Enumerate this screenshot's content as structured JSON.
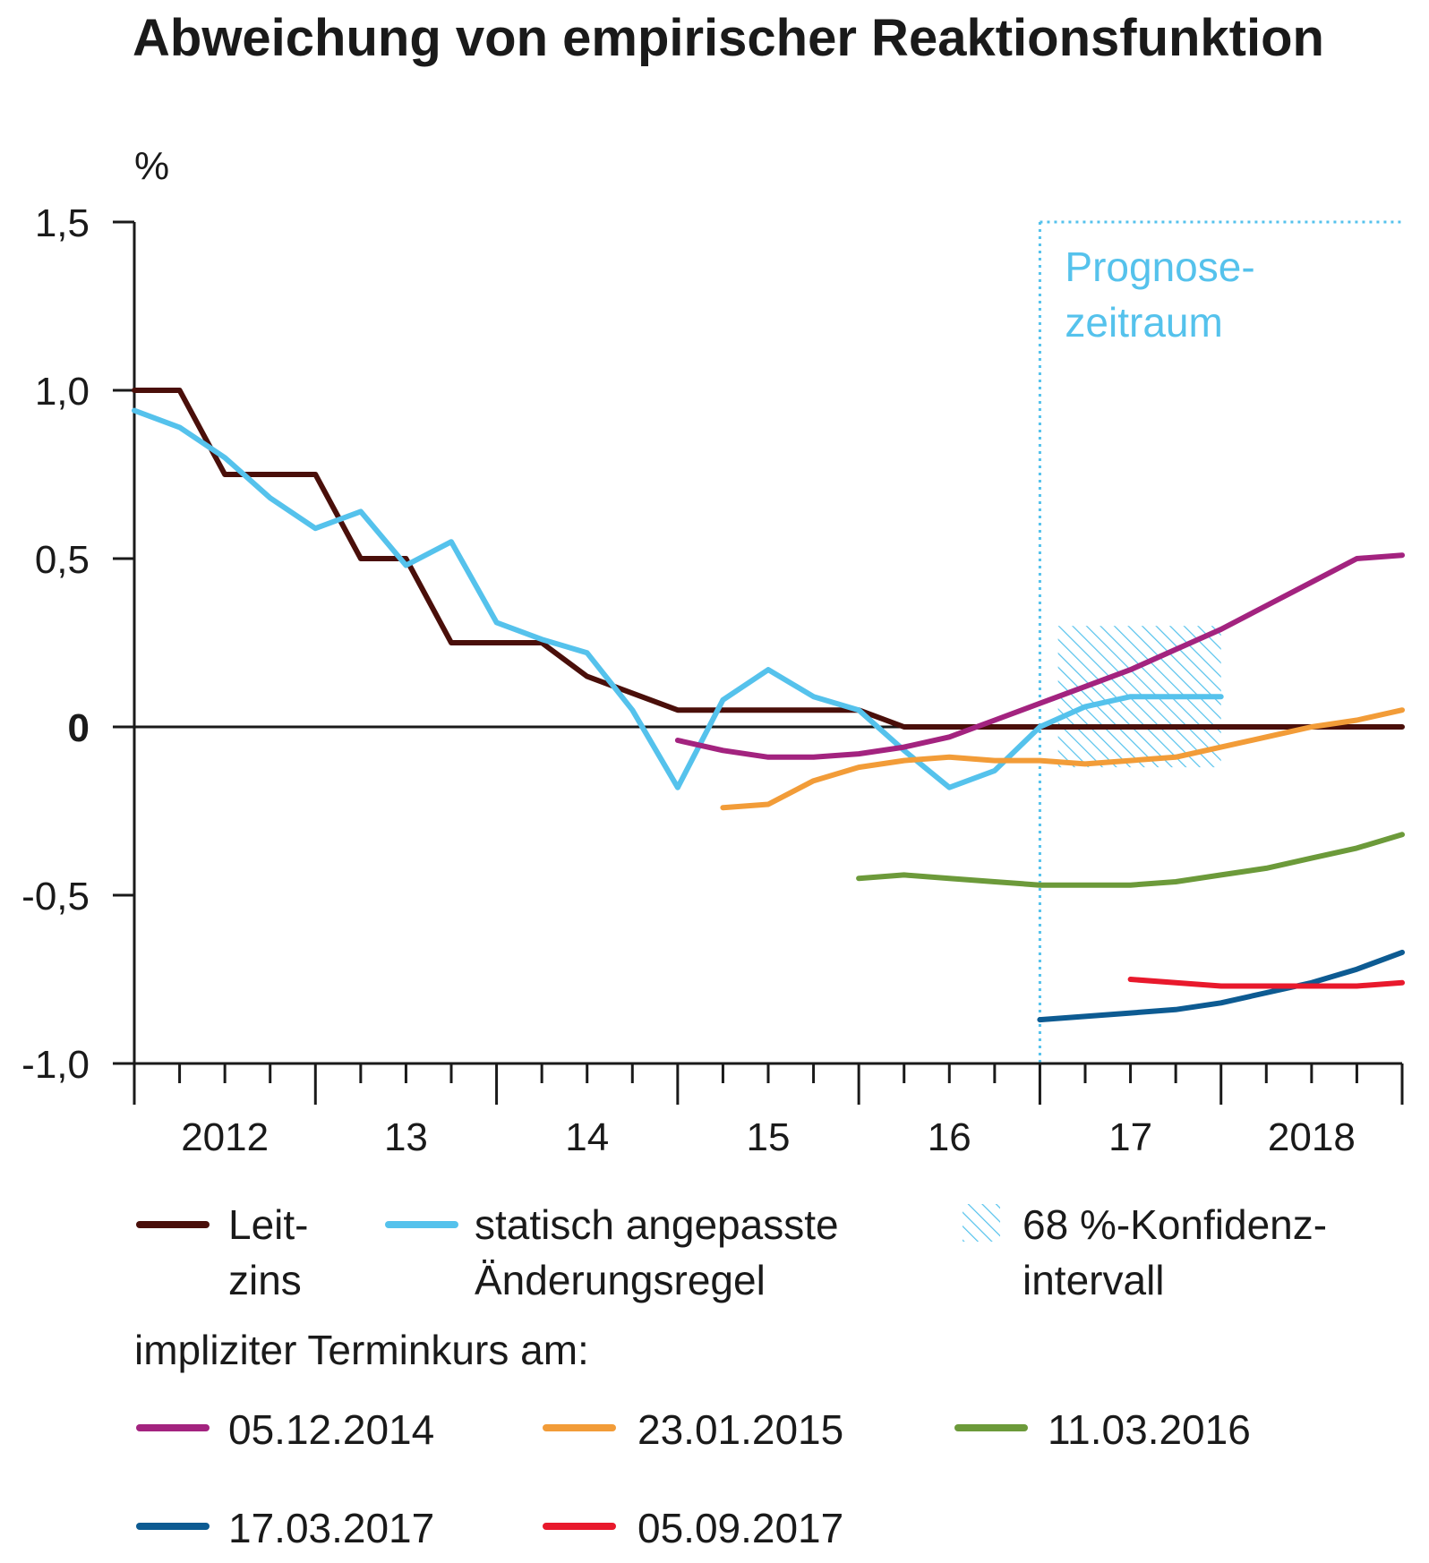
{
  "title": "Abweichung von empirischer Reaktionsfunktion",
  "colors": {
    "leitzins": "#4a0f0a",
    "rule": "#55c2ec",
    "t2014": "#a3237f",
    "t2015": "#f29c38",
    "t2016": "#6c9a3a",
    "t2017a": "#0d5b92",
    "t2017b": "#e8192c"
  },
  "chart_data": {
    "type": "line",
    "title": "Abweichung von empirischer Reaktionsfunktion",
    "y_unit_label": "%",
    "ylim": [
      -1.0,
      1.5
    ],
    "y_ticks": [
      -1.0,
      -0.5,
      0,
      0.5,
      1.0,
      1.5
    ],
    "y_tick_labels": [
      "-1,0",
      "-0,5",
      "0",
      "0,5",
      "1,0",
      "1,5"
    ],
    "xlim": [
      2012.0,
      2019.0
    ],
    "x_year_labels": [
      {
        "x": 2012.5,
        "label": "2012"
      },
      {
        "x": 2013.5,
        "label": "13"
      },
      {
        "x": 2014.5,
        "label": "14"
      },
      {
        "x": 2015.5,
        "label": "15"
      },
      {
        "x": 2016.5,
        "label": "16"
      },
      {
        "x": 2017.5,
        "label": "17"
      },
      {
        "x": 2018.5,
        "label": "2018"
      }
    ],
    "forecast_start": 2017.0,
    "forecast_label": [
      "Prognose-",
      "zeitraum"
    ],
    "confidence_interval": {
      "x": [
        2017.1,
        2018.0
      ],
      "lower": -0.12,
      "upper": 0.3
    },
    "legend": {
      "leitzins": [
        "Leit-",
        "zins"
      ],
      "rule": [
        "statisch angepasste",
        "Änderungsregel"
      ],
      "interval": [
        "68 %-Konfidenz-",
        "intervall"
      ],
      "forward_heading": "impliziter Terminkurs am:"
    },
    "series": [
      {
        "key": "leitzins",
        "name": "Leitzins",
        "color": "#4a0f0a",
        "x": [
          2012.0,
          2012.25,
          2012.5,
          2013.0,
          2013.25,
          2013.5,
          2013.75,
          2014.0,
          2014.25,
          2014.5,
          2015.0,
          2015.5,
          2016.0,
          2016.25,
          2016.5,
          2017.0,
          2017.5,
          2018.0,
          2018.5,
          2019.0
        ],
        "y": [
          1.0,
          1.0,
          0.75,
          0.75,
          0.5,
          0.5,
          0.25,
          0.25,
          0.25,
          0.15,
          0.05,
          0.05,
          0.05,
          0.0,
          0.0,
          0.0,
          0.0,
          0.0,
          0.0,
          0.0
        ]
      },
      {
        "key": "rule",
        "name": "statisch angepasste Änderungsregel",
        "color": "#55c2ec",
        "x": [
          2012.0,
          2012.25,
          2012.5,
          2012.75,
          2013.0,
          2013.25,
          2013.5,
          2013.75,
          2014.0,
          2014.25,
          2014.5,
          2014.75,
          2015.0,
          2015.25,
          2015.5,
          2015.75,
          2016.0,
          2016.25,
          2016.5,
          2016.75,
          2017.0,
          2017.25,
          2017.5,
          2017.75,
          2018.0
        ],
        "y": [
          0.94,
          0.89,
          0.8,
          0.68,
          0.59,
          0.64,
          0.48,
          0.55,
          0.31,
          0.26,
          0.22,
          0.05,
          -0.18,
          0.08,
          0.17,
          0.09,
          0.05,
          -0.07,
          -0.18,
          -0.13,
          0.0,
          0.06,
          0.09,
          0.09,
          0.09
        ]
      },
      {
        "key": "t2014",
        "name": "05.12.2014",
        "color": "#a3237f",
        "x": [
          2015.0,
          2015.25,
          2015.5,
          2015.75,
          2016.0,
          2016.25,
          2016.5,
          2016.75,
          2017.0,
          2017.25,
          2017.5,
          2017.75,
          2018.0,
          2018.25,
          2018.5,
          2018.75,
          2019.0
        ],
        "y": [
          -0.04,
          -0.07,
          -0.09,
          -0.09,
          -0.08,
          -0.06,
          -0.03,
          0.02,
          0.07,
          0.12,
          0.17,
          0.23,
          0.29,
          0.36,
          0.43,
          0.5,
          0.51
        ]
      },
      {
        "key": "t2015",
        "name": "23.01.2015",
        "color": "#f29c38",
        "x": [
          2015.25,
          2015.5,
          2015.75,
          2016.0,
          2016.25,
          2016.5,
          2016.75,
          2017.0,
          2017.25,
          2017.5,
          2017.75,
          2018.0,
          2018.25,
          2018.5,
          2018.75,
          2019.0
        ],
        "y": [
          -0.24,
          -0.23,
          -0.16,
          -0.12,
          -0.1,
          -0.09,
          -0.1,
          -0.1,
          -0.11,
          -0.1,
          -0.09,
          -0.06,
          -0.03,
          0.0,
          0.02,
          0.05
        ]
      },
      {
        "key": "t2016",
        "name": "11.03.2016",
        "color": "#6c9a3a",
        "x": [
          2016.0,
          2016.25,
          2016.5,
          2016.75,
          2017.0,
          2017.25,
          2017.5,
          2017.75,
          2018.0,
          2018.25,
          2018.5,
          2018.75,
          2019.0
        ],
        "y": [
          -0.45,
          -0.44,
          -0.45,
          -0.46,
          -0.47,
          -0.47,
          -0.47,
          -0.46,
          -0.44,
          -0.42,
          -0.39,
          -0.36,
          -0.32
        ]
      },
      {
        "key": "t2017a",
        "name": "17.03.2017",
        "color": "#0d5b92",
        "x": [
          2017.0,
          2017.25,
          2017.5,
          2017.75,
          2018.0,
          2018.25,
          2018.5,
          2018.75,
          2019.0
        ],
        "y": [
          -0.87,
          -0.86,
          -0.85,
          -0.84,
          -0.82,
          -0.79,
          -0.76,
          -0.72,
          -0.67
        ]
      },
      {
        "key": "t2017b",
        "name": "05.09.2017",
        "color": "#e8192c",
        "x": [
          2017.5,
          2017.75,
          2018.0,
          2018.25,
          2018.5,
          2018.75,
          2019.0
        ],
        "y": [
          -0.75,
          -0.76,
          -0.77,
          -0.77,
          -0.77,
          -0.77,
          -0.76
        ]
      }
    ]
  }
}
